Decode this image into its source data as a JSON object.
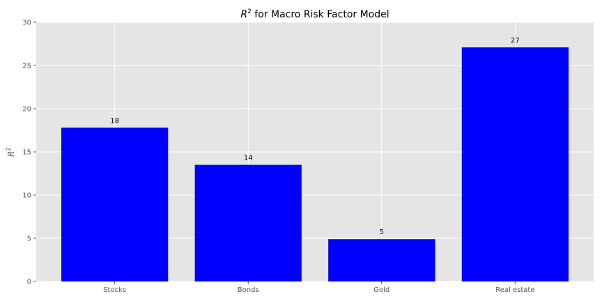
{
  "chart_data": {
    "type": "bar",
    "title_main": "R",
    "title_sup": "2",
    "title_rest": " for Macro Risk Factor Model",
    "ylabel_main": "R",
    "ylabel_sup": "2",
    "xlabel": "",
    "categories": [
      "Stocks",
      "Bonds",
      "Gold",
      "Real estate"
    ],
    "values": [
      17.8,
      13.5,
      4.9,
      27.1
    ],
    "data_labels": [
      "18",
      "14",
      "5",
      "27"
    ],
    "ylim": [
      0,
      30
    ],
    "yticks": [
      0,
      5,
      10,
      15,
      20,
      25,
      30
    ],
    "grid": true,
    "bar_color": "#0000ff",
    "plot_background": "#e5e5e5",
    "grid_color": "#ffffff"
  }
}
